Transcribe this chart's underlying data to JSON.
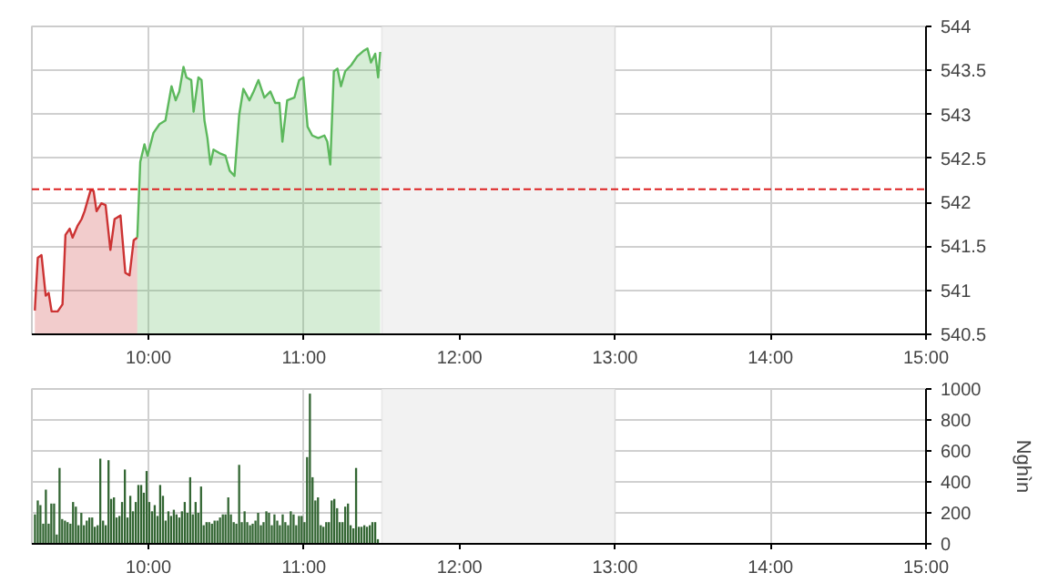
{
  "chart_data": [
    {
      "type": "area",
      "xlim": [
        9.25,
        15
      ],
      "xticks": [
        {
          "value": 10,
          "label": "10:00"
        },
        {
          "value": 11,
          "label": "11:00"
        },
        {
          "value": 12,
          "label": "12:00"
        },
        {
          "value": 13,
          "label": "13:00"
        },
        {
          "value": 14,
          "label": "14:00"
        },
        {
          "value": 15,
          "label": "15:00"
        }
      ],
      "ylim": [
        540.5,
        544
      ],
      "yticks": [
        540.5,
        541,
        541.5,
        542,
        542.5,
        543,
        543.5,
        544
      ],
      "grid": true,
      "series": [
        {
          "color": "#cc3333",
          "x": [
            9.269,
            9.288,
            9.312,
            9.339,
            9.358,
            9.377,
            9.416,
            9.447,
            9.466,
            9.493,
            9.512,
            9.543,
            9.57,
            9.589,
            9.628,
            9.647,
            9.666,
            9.697,
            9.724,
            9.755,
            9.782,
            9.82,
            9.851,
            9.878,
            9.905,
            9.928
          ],
          "values": [
            540.77,
            541.37,
            541.4,
            540.94,
            540.97,
            540.76,
            540.76,
            540.84,
            541.63,
            541.7,
            541.6,
            541.73,
            541.81,
            541.9,
            542.14,
            542.13,
            541.9,
            541.99,
            541.97,
            541.46,
            541.81,
            541.85,
            541.2,
            541.17,
            541.57,
            541.6
          ]
        },
        {
          "color": "#5cb85c",
          "x": [
            9.928,
            9.947,
            9.974,
            9.994,
            10.032,
            10.071,
            10.109,
            10.148,
            10.175,
            10.198,
            10.225,
            10.244,
            10.275,
            10.29,
            10.321,
            10.341,
            10.36,
            10.379,
            10.398,
            10.418,
            10.456,
            10.495,
            10.522,
            10.553,
            10.583,
            10.61,
            10.649,
            10.676,
            10.707,
            10.745,
            10.784,
            10.815,
            10.842,
            10.861,
            10.892,
            10.938,
            10.969,
            10.996,
            11.023,
            11.053,
            11.092,
            11.131,
            11.15,
            11.169,
            11.192,
            11.215,
            11.238,
            11.265,
            11.304,
            11.342,
            11.381,
            11.408,
            11.431,
            11.458,
            11.477,
            11.49
          ],
          "values": [
            541.6,
            542.46,
            542.66,
            542.53,
            542.79,
            542.89,
            542.93,
            543.32,
            543.16,
            543.26,
            543.54,
            543.42,
            543.39,
            543.03,
            543.42,
            543.39,
            542.93,
            542.73,
            542.43,
            542.6,
            542.56,
            542.53,
            542.36,
            542.3,
            542.99,
            543.29,
            543.16,
            543.26,
            543.39,
            543.19,
            543.26,
            543.13,
            543.13,
            542.69,
            543.16,
            543.19,
            543.39,
            543.42,
            542.86,
            542.76,
            542.73,
            542.76,
            542.69,
            542.43,
            543.49,
            543.52,
            543.32,
            543.49,
            543.56,
            543.66,
            543.72,
            543.75,
            543.59,
            543.69,
            543.42,
            543.71
          ]
        }
      ],
      "ref_lines": [
        {
          "axis": "y",
          "value": 542.15,
          "color": "#dd2222",
          "line_style": "dashed"
        }
      ],
      "bands": [
        {
          "axis": "x",
          "from": 11.5,
          "to": 13,
          "color": "#f2f2f2"
        }
      ]
    },
    {
      "type": "bar",
      "xlim": [
        9.25,
        15
      ],
      "xticks": [
        {
          "value": 10,
          "label": "10:00"
        },
        {
          "value": 11,
          "label": "11:00"
        },
        {
          "value": 12,
          "label": "12:00"
        },
        {
          "value": 13,
          "label": "13:00"
        },
        {
          "value": 14,
          "label": "14:00"
        },
        {
          "value": 15,
          "label": "15:00"
        }
      ],
      "ylim": [
        0,
        1000
      ],
      "yticks": [
        0,
        200,
        400,
        600,
        800,
        1000
      ],
      "ylabel": "Nghìn",
      "grid": true,
      "bands": [
        {
          "axis": "x",
          "from": 11.5,
          "to": 13,
          "color": "#f2f2f2"
        }
      ],
      "series": [
        {
          "color": "#336633",
          "x": [
            9.27,
            9.288,
            9.305,
            9.323,
            9.34,
            9.358,
            9.375,
            9.393,
            9.41,
            9.428,
            9.445,
            9.463,
            9.48,
            9.498,
            9.515,
            9.533,
            9.55,
            9.568,
            9.585,
            9.603,
            9.62,
            9.638,
            9.655,
            9.673,
            9.69,
            9.708,
            9.725,
            9.743,
            9.76,
            9.778,
            9.795,
            9.813,
            9.83,
            9.848,
            9.865,
            9.883,
            9.9,
            9.918,
            9.935,
            9.953,
            9.97,
            9.988,
            10.005,
            10.023,
            10.04,
            10.058,
            10.075,
            10.093,
            10.11,
            10.128,
            10.145,
            10.163,
            10.18,
            10.198,
            10.215,
            10.233,
            10.25,
            10.268,
            10.285,
            10.303,
            10.32,
            10.338,
            10.355,
            10.373,
            10.39,
            10.408,
            10.425,
            10.443,
            10.46,
            10.478,
            10.495,
            10.513,
            10.53,
            10.548,
            10.565,
            10.583,
            10.6,
            10.618,
            10.635,
            10.653,
            10.67,
            10.688,
            10.705,
            10.723,
            10.74,
            10.758,
            10.775,
            10.793,
            10.81,
            10.828,
            10.845,
            10.863,
            10.88,
            10.898,
            10.915,
            10.933,
            10.95,
            10.968,
            10.985,
            11.003,
            11.02,
            11.038,
            11.055,
            11.073,
            11.09,
            11.108,
            11.125,
            11.143,
            11.16,
            11.178,
            11.195,
            11.213,
            11.23,
            11.248,
            11.265,
            11.283,
            11.3,
            11.318,
            11.335,
            11.353,
            11.37,
            11.388,
            11.405,
            11.423,
            11.44,
            11.458,
            11.475
          ],
          "values": [
            190,
            280,
            250,
            130,
            350,
            130,
            260,
            260,
            60,
            490,
            160,
            150,
            140,
            130,
            270,
            240,
            120,
            200,
            120,
            150,
            170,
            170,
            110,
            120,
            550,
            150,
            120,
            540,
            290,
            300,
            170,
            180,
            270,
            480,
            170,
            310,
            210,
            270,
            380,
            380,
            330,
            470,
            270,
            210,
            250,
            180,
            380,
            310,
            150,
            210,
            180,
            220,
            190,
            170,
            210,
            270,
            200,
            430,
            190,
            270,
            200,
            370,
            120,
            140,
            140,
            130,
            150,
            150,
            170,
            190,
            190,
            300,
            190,
            140,
            130,
            510,
            140,
            210,
            140,
            120,
            130,
            150,
            200,
            120,
            140,
            210,
            200,
            120,
            190,
            150,
            120,
            190,
            140,
            120,
            210,
            190,
            120,
            180,
            180,
            140,
            560,
            970,
            430,
            280,
            300,
            120,
            110,
            140,
            140,
            280,
            290,
            230,
            140,
            140,
            240,
            260,
            120,
            100,
            490,
            110,
            110,
            120,
            110,
            120,
            140,
            140,
            30
          ]
        }
      ]
    }
  ]
}
